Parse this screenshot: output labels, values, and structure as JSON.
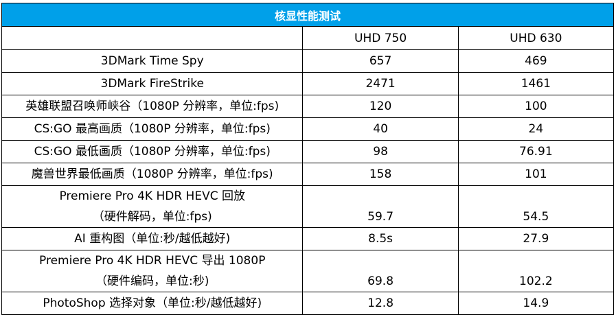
{
  "table": {
    "title": "核显性能测试",
    "columns": [
      "",
      "UHD 750",
      "UHD 630"
    ],
    "rows": [
      {
        "label": "3DMark Time Spy",
        "uhd750": "657",
        "uhd630": "469"
      },
      {
        "label": "3DMark FireStrike",
        "uhd750": "2471",
        "uhd630": "1461"
      },
      {
        "label": "英雄联盟召唤师峡谷（1080P 分辨率，单位:fps)",
        "uhd750": "120",
        "uhd630": "100"
      },
      {
        "label": "CS:GO 最高画质（1080P 分辨率，单位:fps)",
        "uhd750": "40",
        "uhd630": "24"
      },
      {
        "label": "CS:GO 最低画质（1080P 分辨率，单位:fps)",
        "uhd750": "98",
        "uhd630": "76.91"
      },
      {
        "label": "魔兽世界最低画质（1080P 分辨率，单位:fps)",
        "uhd750": "158",
        "uhd630": "101"
      },
      {
        "label_line1": "Premiere Pro 4K HDR HEVC 回放",
        "label_line2": "（硬件解码，单位:fps)",
        "uhd750": "59.7",
        "uhd630": "54.5"
      },
      {
        "label": "AI 重构图（单位:秒/越低越好)",
        "uhd750": "8.5s",
        "uhd630": "27.9"
      },
      {
        "label_line1": "Premiere Pro 4K HDR HEVC 导出 1080P",
        "label_line2": "（硬件编码，单位:秒)",
        "uhd750": "69.8",
        "uhd630": "102.2"
      },
      {
        "label": "PhotoShop 选择对象（单位:秒/越低越好)",
        "uhd750": "12.8",
        "uhd630": "14.9"
      }
    ]
  },
  "colors": {
    "header_bg": "#00a0e9",
    "header_text": "#ffffff"
  }
}
